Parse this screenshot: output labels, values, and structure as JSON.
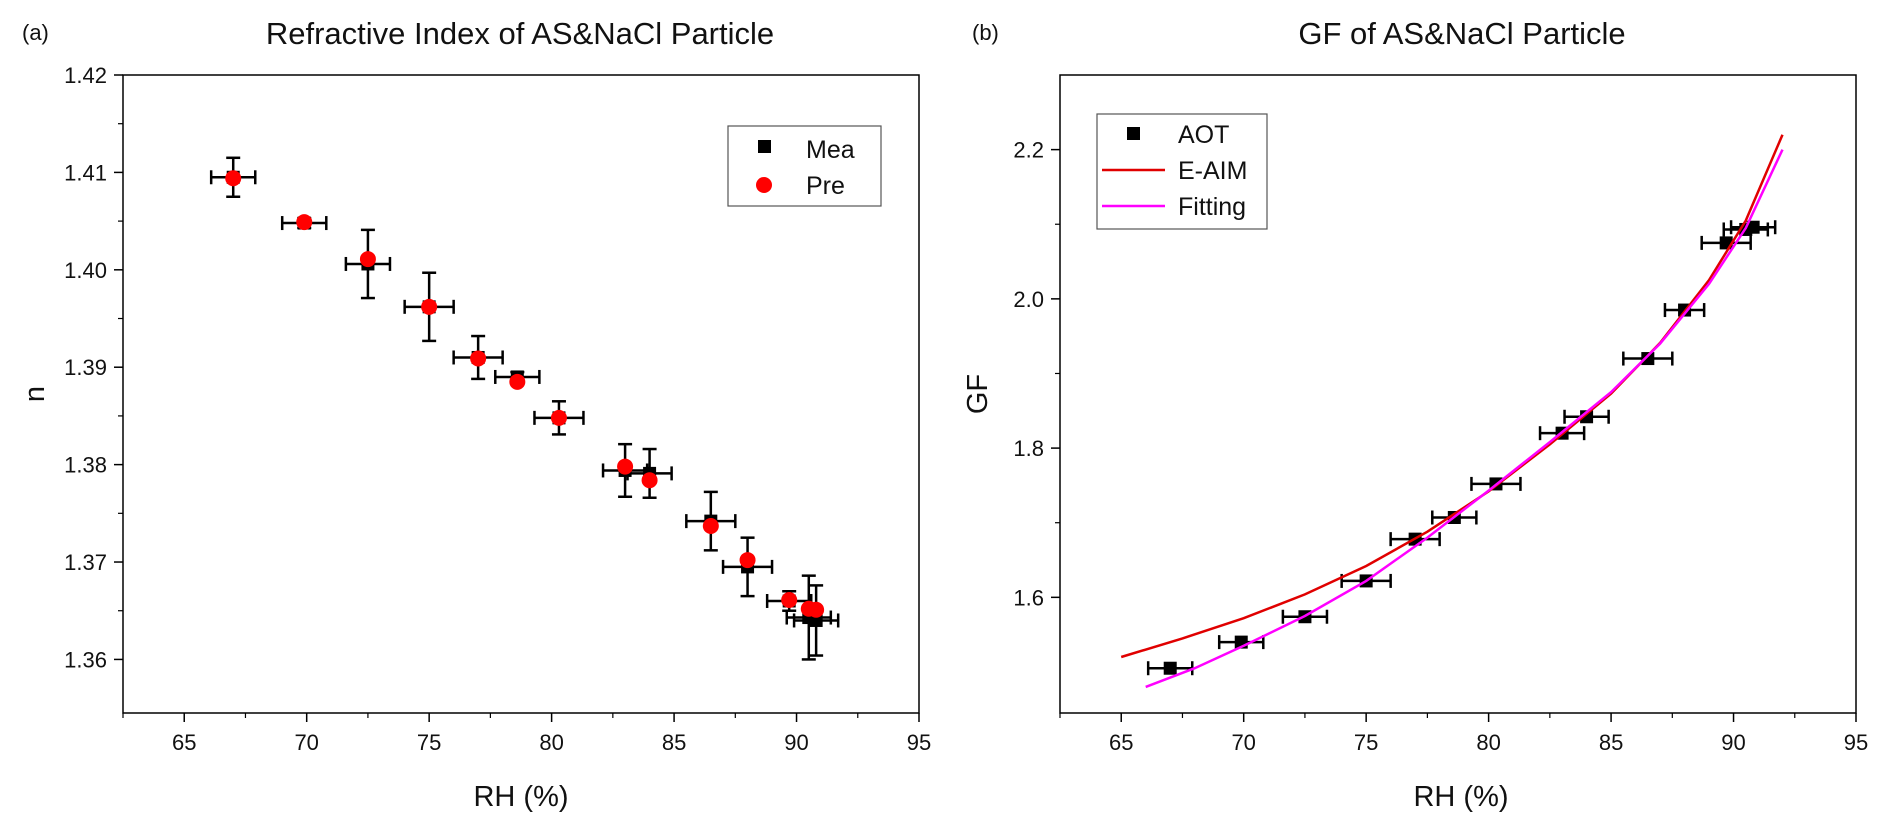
{
  "chart_data": [
    {
      "type": "scatter",
      "panel_label": "(a)",
      "title": "Refractive Index of AS&NaCl Particle",
      "xlabel": "RH (%)",
      "ylabel": "n",
      "xlim": [
        62.5,
        95
      ],
      "ylim": [
        1.3545,
        1.42
      ],
      "xticks": [
        65,
        70,
        75,
        80,
        85,
        90,
        95
      ],
      "yticks": [
        1.36,
        1.37,
        1.38,
        1.39,
        1.4,
        1.41,
        1.42
      ],
      "xtick_labels": [
        "65",
        "70",
        "75",
        "80",
        "85",
        "90",
        "95"
      ],
      "ytick_labels": [
        "1.36",
        "1.37",
        "1.38",
        "1.39",
        "1.40",
        "1.41",
        "1.42"
      ],
      "grid": false,
      "legend": {
        "placement": "top-right",
        "entries": [
          "Mea",
          "Pre"
        ]
      },
      "series": [
        {
          "name": "Mea",
          "marker": "square",
          "color": "#000000",
          "points": [
            {
              "x": 67.0,
              "y": 1.4095,
              "xerr": 0.9,
              "yerr": 0.002
            },
            {
              "x": 69.9,
              "y": 1.4048,
              "xerr": 0.9,
              "yerr": 0.0005
            },
            {
              "x": 72.5,
              "y": 1.4006,
              "xerr": 0.9,
              "yerr": 0.0035
            },
            {
              "x": 75.0,
              "y": 1.3962,
              "xerr": 1.0,
              "yerr": 0.0035
            },
            {
              "x": 77.0,
              "y": 1.391,
              "xerr": 1.0,
              "yerr": 0.0022
            },
            {
              "x": 78.6,
              "y": 1.389,
              "xerr": 0.9,
              "yerr": 0.0005
            },
            {
              "x": 80.3,
              "y": 1.3848,
              "xerr": 1.0,
              "yerr": 0.0017
            },
            {
              "x": 83.0,
              "y": 1.3794,
              "xerr": 0.9,
              "yerr": 0.0027
            },
            {
              "x": 84.0,
              "y": 1.3791,
              "xerr": 0.9,
              "yerr": 0.0025
            },
            {
              "x": 86.5,
              "y": 1.3742,
              "xerr": 1.0,
              "yerr": 0.003
            },
            {
              "x": 88.0,
              "y": 1.3695,
              "xerr": 1.0,
              "yerr": 0.003
            },
            {
              "x": 89.7,
              "y": 1.366,
              "xerr": 0.9,
              "yerr": 0.001
            },
            {
              "x": 90.5,
              "y": 1.3643,
              "xerr": 0.9,
              "yerr": 0.0043
            },
            {
              "x": 90.8,
              "y": 1.364,
              "xerr": 0.9,
              "yerr": 0.0036
            }
          ]
        },
        {
          "name": "Pre",
          "marker": "circle",
          "color": "#ff0000",
          "points": [
            {
              "x": 67.0,
              "y": 1.4094
            },
            {
              "x": 69.9,
              "y": 1.4049
            },
            {
              "x": 72.5,
              "y": 1.4011
            },
            {
              "x": 75.0,
              "y": 1.3962
            },
            {
              "x": 77.0,
              "y": 1.3909
            },
            {
              "x": 78.6,
              "y": 1.3885
            },
            {
              "x": 80.3,
              "y": 1.3848
            },
            {
              "x": 83.0,
              "y": 1.3798
            },
            {
              "x": 84.0,
              "y": 1.3784
            },
            {
              "x": 86.5,
              "y": 1.3737
            },
            {
              "x": 88.0,
              "y": 1.3702
            },
            {
              "x": 89.7,
              "y": 1.3661
            },
            {
              "x": 90.5,
              "y": 1.3652
            },
            {
              "x": 90.8,
              "y": 1.3651
            }
          ]
        }
      ]
    },
    {
      "type": "scatter",
      "panel_label": "(b)",
      "title": "GF of AS&NaCl Particle",
      "xlabel": "RH (%)",
      "ylabel": "GF",
      "xlim": [
        62.5,
        95
      ],
      "ylim": [
        1.445,
        2.3
      ],
      "xticks": [
        65,
        70,
        75,
        80,
        85,
        90,
        95
      ],
      "yticks": [
        1.6,
        1.8,
        2.0,
        2.2
      ],
      "xtick_labels": [
        "65",
        "70",
        "75",
        "80",
        "85",
        "90",
        "95"
      ],
      "ytick_labels": [
        "1.6",
        "1.8",
        "2.0",
        "2.2"
      ],
      "grid": false,
      "legend": {
        "placement": "top-left",
        "entries": [
          "AOT",
          "E-AIM",
          "Fitting"
        ]
      },
      "series": [
        {
          "name": "AOT",
          "marker": "square",
          "color": "#000000",
          "points": [
            {
              "x": 67.0,
              "y": 1.505,
              "xerr": 0.9
            },
            {
              "x": 69.9,
              "y": 1.54,
              "xerr": 0.9
            },
            {
              "x": 72.5,
              "y": 1.574,
              "xerr": 0.9
            },
            {
              "x": 75.0,
              "y": 1.622,
              "xerr": 1.0
            },
            {
              "x": 77.0,
              "y": 1.678,
              "xerr": 1.0
            },
            {
              "x": 78.6,
              "y": 1.707,
              "xerr": 0.9
            },
            {
              "x": 80.3,
              "y": 1.752,
              "xerr": 1.0
            },
            {
              "x": 83.0,
              "y": 1.82,
              "xerr": 0.9
            },
            {
              "x": 84.0,
              "y": 1.842,
              "xerr": 0.9
            },
            {
              "x": 86.5,
              "y": 1.92,
              "xerr": 1.0
            },
            {
              "x": 88.0,
              "y": 1.985,
              "xerr": 0.8
            },
            {
              "x": 89.7,
              "y": 2.075,
              "xerr": 1.0
            },
            {
              "x": 90.5,
              "y": 2.093,
              "xerr": 0.9
            },
            {
              "x": 90.8,
              "y": 2.096,
              "xerr": 0.9
            }
          ]
        },
        {
          "name": "E-AIM",
          "type": "line",
          "color": "#e00000",
          "points": [
            {
              "x": 65,
              "y": 1.52
            },
            {
              "x": 67.5,
              "y": 1.545
            },
            {
              "x": 70,
              "y": 1.572
            },
            {
              "x": 72.5,
              "y": 1.604
            },
            {
              "x": 75,
              "y": 1.642
            },
            {
              "x": 77.5,
              "y": 1.688
            },
            {
              "x": 80,
              "y": 1.742
            },
            {
              "x": 82.5,
              "y": 1.805
            },
            {
              "x": 85,
              "y": 1.873
            },
            {
              "x": 87,
              "y": 1.941
            },
            {
              "x": 89,
              "y": 2.025
            },
            {
              "x": 90.5,
              "y": 2.105
            },
            {
              "x": 92,
              "y": 2.22
            }
          ]
        },
        {
          "name": "Fitting",
          "type": "line",
          "color": "#ff00ff",
          "points": [
            {
              "x": 66,
              "y": 1.48
            },
            {
              "x": 68,
              "y": 1.505
            },
            {
              "x": 70,
              "y": 1.535
            },
            {
              "x": 72.5,
              "y": 1.575
            },
            {
              "x": 75,
              "y": 1.622
            },
            {
              "x": 77.5,
              "y": 1.68
            },
            {
              "x": 80,
              "y": 1.743
            },
            {
              "x": 82.5,
              "y": 1.808
            },
            {
              "x": 85,
              "y": 1.875
            },
            {
              "x": 87,
              "y": 1.94
            },
            {
              "x": 89,
              "y": 2.02
            },
            {
              "x": 90.5,
              "y": 2.095
            },
            {
              "x": 92,
              "y": 2.2
            }
          ]
        }
      ]
    }
  ]
}
